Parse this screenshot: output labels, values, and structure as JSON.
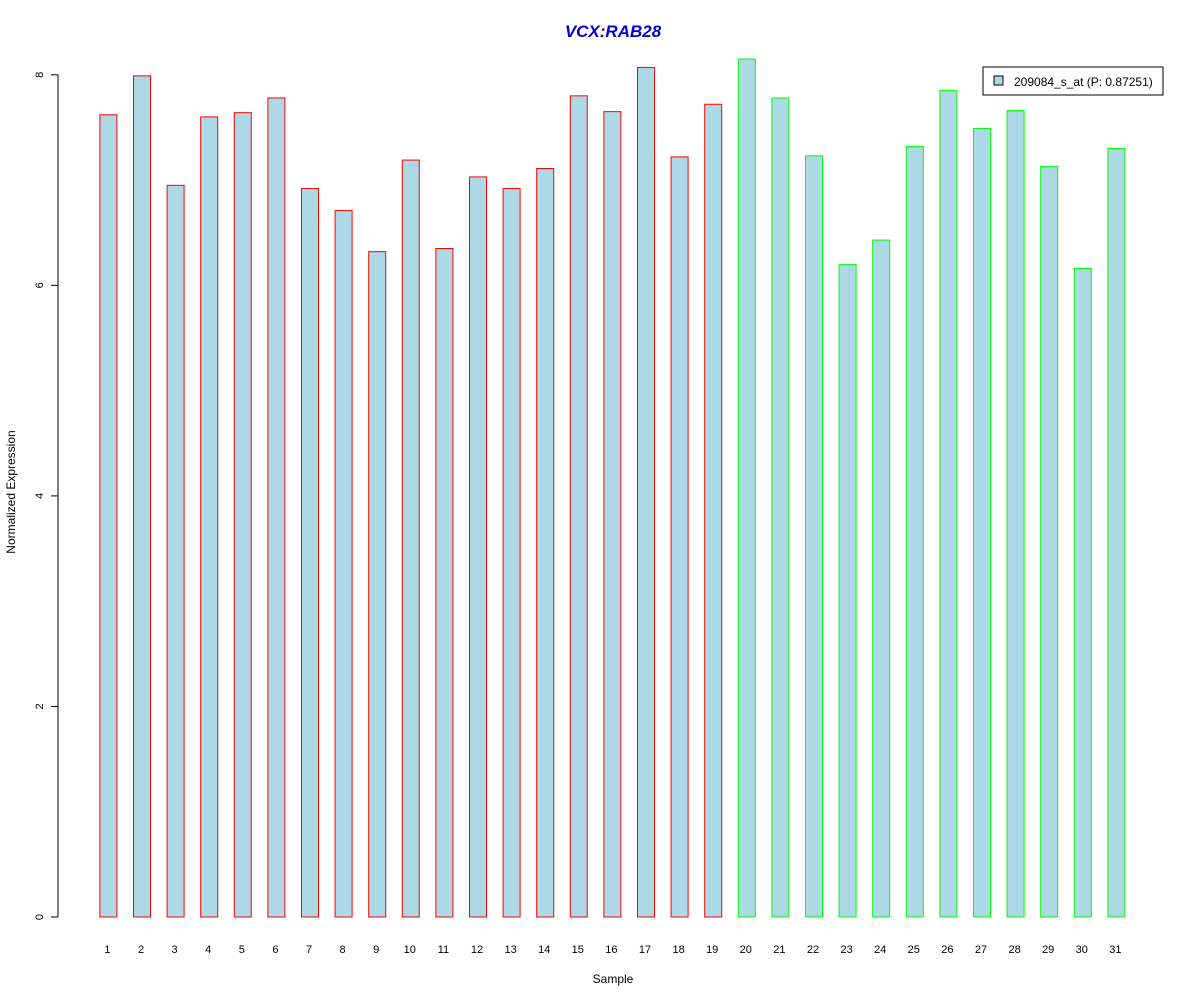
{
  "chart_data": {
    "type": "bar",
    "title": "VCX:RAB28",
    "xlabel": "Sample",
    "ylabel": "Normalized Expression",
    "categories": [
      "1",
      "2",
      "3",
      "4",
      "5",
      "6",
      "7",
      "8",
      "9",
      "10",
      "11",
      "12",
      "13",
      "14",
      "15",
      "16",
      "17",
      "18",
      "19",
      "20",
      "21",
      "22",
      "23",
      "24",
      "25",
      "26",
      "27",
      "28",
      "29",
      "30",
      "31"
    ],
    "series": [
      {
        "name": "209084_s_at (P: 0.87251)",
        "values": [
          7.62,
          7.99,
          6.95,
          7.6,
          7.64,
          7.78,
          6.92,
          6.71,
          6.32,
          7.19,
          6.35,
          7.03,
          6.92,
          7.11,
          7.8,
          7.65,
          8.07,
          7.22,
          7.72,
          8.15,
          7.78,
          7.23,
          6.2,
          6.43,
          7.32,
          7.85,
          7.49,
          7.66,
          7.13,
          6.16,
          7.3
        ]
      }
    ],
    "ylim": [
      0,
      8.15
    ],
    "yticks": [
      "0",
      "2",
      "4",
      "6",
      "8"
    ],
    "legend_position": "top-right",
    "grid": false,
    "colors": {
      "title": "#0000CC",
      "bar_fill": "#ADD8E6",
      "group1_border": "#FF0000",
      "group2_border": "#00FF00",
      "axis": "#000000"
    }
  }
}
